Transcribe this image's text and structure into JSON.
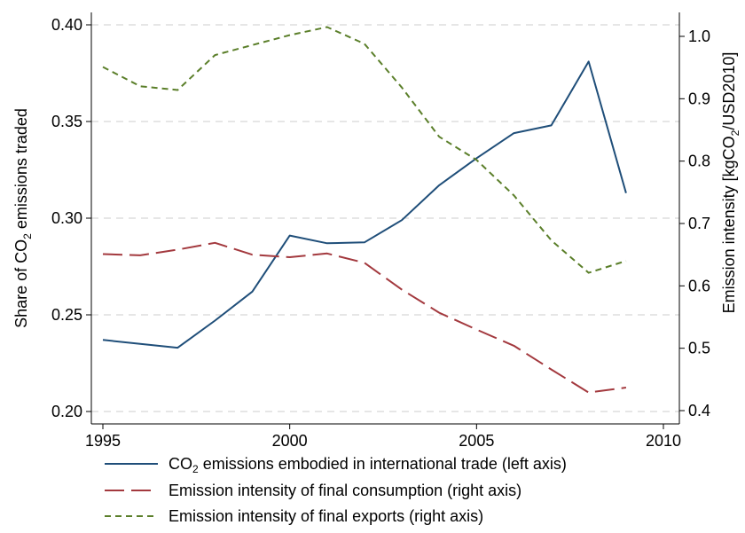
{
  "chart_data": {
    "type": "line",
    "x": [
      1995,
      1996,
      1997,
      1998,
      1999,
      2000,
      2001,
      2002,
      2003,
      2004,
      2005,
      2006,
      2007,
      2008,
      2009
    ],
    "xlim": [
      1995,
      2010
    ],
    "xticks": [
      1995,
      2000,
      2005,
      2010
    ],
    "left_axis": {
      "label_pre": "Share of CO",
      "label_sub": "2",
      "label_post": " emissions traded",
      "ylim": [
        0.2,
        0.4
      ],
      "ticks": [
        "0.20",
        "0.25",
        "0.30",
        "0.35",
        "0.40"
      ]
    },
    "right_axis": {
      "label_pre": "Emission intensity [kgCO",
      "label_sub": "2",
      "label_post": "/USD2010]",
      "ylim": [
        0.4,
        1.0
      ],
      "ticks": [
        "0.4",
        "0.5",
        "0.6",
        "0.7",
        "0.8",
        "0.9",
        "1.0"
      ]
    },
    "grid": true,
    "legend_position": "bottom",
    "series": [
      {
        "name_pre": "CO",
        "name_sub": "2",
        "name_post": " emissions embodied in international trade (left axis)",
        "axis": "left",
        "color": "#1f4e79",
        "style": "solid",
        "values": [
          0.237,
          0.235,
          0.233,
          0.247,
          0.262,
          0.291,
          0.287,
          0.2875,
          0.299,
          0.317,
          0.331,
          0.344,
          0.348,
          0.381,
          0.313
        ]
      },
      {
        "name_pre": "Emission intensity of final consumption (right axis)",
        "name_sub": "",
        "name_post": "",
        "axis": "right",
        "color": "#a3393e",
        "style": "longdash",
        "values": [
          0.651,
          0.649,
          0.658,
          0.669,
          0.65,
          0.646,
          0.652,
          0.637,
          0.594,
          0.557,
          0.53,
          0.504,
          0.466,
          0.429,
          0.437
        ]
      },
      {
        "name_pre": "Emission intensity of final exports (right axis)",
        "name_sub": "",
        "name_post": "",
        "axis": "right",
        "color": "#5b7f2a",
        "style": "shortdash",
        "values": [
          0.951,
          0.92,
          0.914,
          0.97,
          0.986,
          1.002,
          1.015,
          0.988,
          0.918,
          0.839,
          0.802,
          0.745,
          0.673,
          0.621,
          0.64
        ]
      }
    ]
  }
}
